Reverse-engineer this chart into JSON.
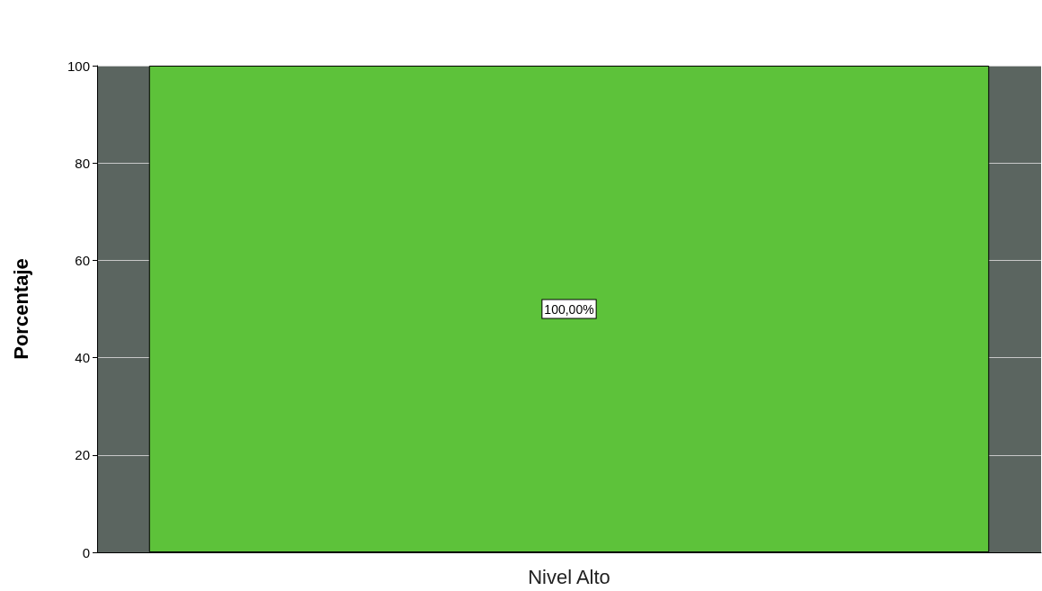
{
  "chart_data": {
    "type": "bar",
    "ylabel": "Porcentaje",
    "categories": [
      "Nivel Alto"
    ],
    "values": [
      100
    ],
    "value_labels": [
      "100,00%"
    ],
    "color": "#5dc23a",
    "ylim": [
      0,
      100
    ],
    "yticks": [
      0,
      20,
      40,
      60,
      80,
      100
    ],
    "grid": "y"
  }
}
